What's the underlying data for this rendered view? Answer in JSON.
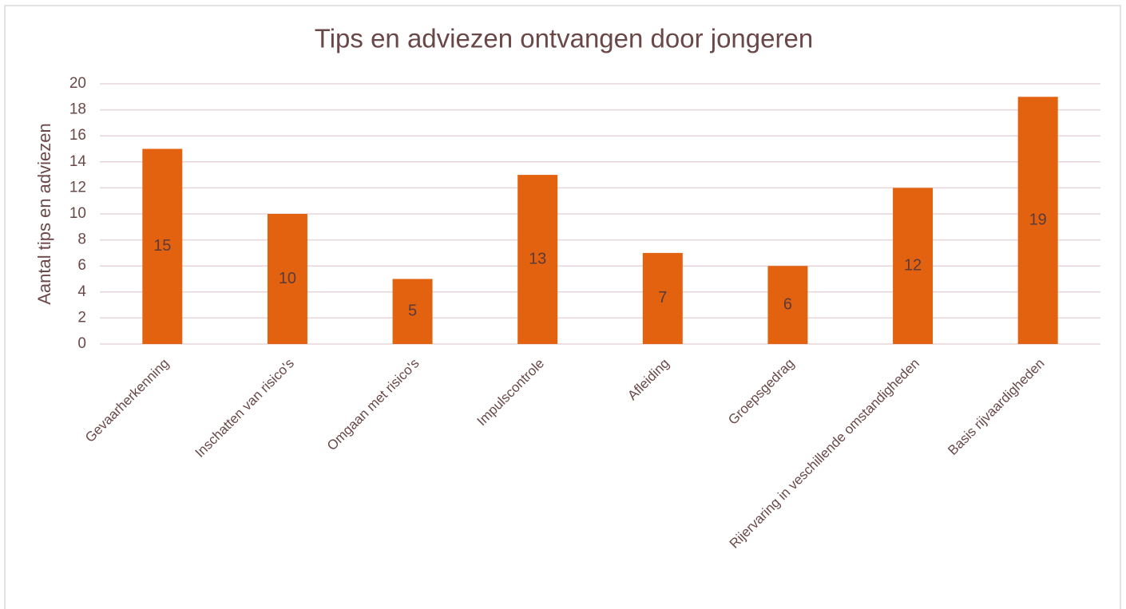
{
  "chart_data": {
    "type": "bar",
    "title": "Tips en adviezen ontvangen door jongeren",
    "ylabel": "Aantal tips en adviezen",
    "categories": [
      "Gevaarherkenning",
      "Inschatten van risico's",
      "Omgaan met risico's",
      "Impulscontrole",
      "Afleiding",
      "Groepsgedrag",
      "Rijervaring in veschillende omstandigheden",
      "Basis rijvaardigheden"
    ],
    "values": [
      15,
      10,
      5,
      13,
      7,
      6,
      12,
      19
    ],
    "color": "#e3620f",
    "ylim": [
      0,
      20
    ],
    "yticks": [
      0,
      2,
      4,
      6,
      8,
      10,
      12,
      14,
      16,
      18,
      20
    ],
    "grid": true
  }
}
